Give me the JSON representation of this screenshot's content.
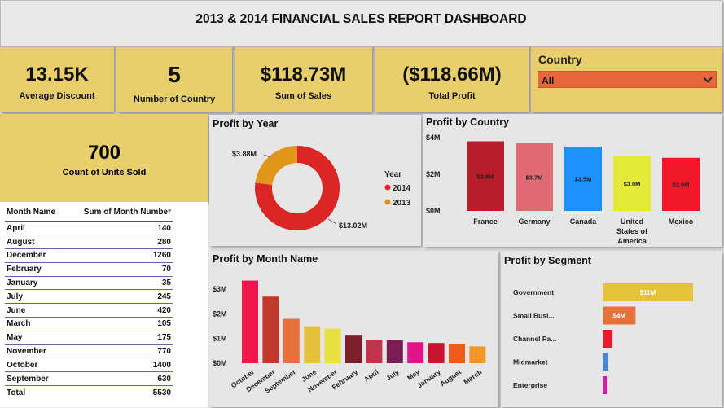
{
  "header": {
    "title": "2013 & 2014 FINANCIAL SALES REPORT DASHBOARD"
  },
  "kpis": [
    {
      "value": "13.15K",
      "label": "Average Discount"
    },
    {
      "value": "5",
      "label": "Number of Country"
    },
    {
      "value": "$118.73M",
      "label": "Sum of Sales"
    },
    {
      "value": "($118.66M)",
      "label": "Total Profit"
    }
  ],
  "slicer": {
    "title": "Country",
    "selected": "All"
  },
  "units": {
    "value": "700",
    "label": "Count of Units Sold"
  },
  "month_table": {
    "headers": [
      "Month Name",
      "Sum of Month Number"
    ],
    "rows": [
      {
        "m": "April",
        "v": "140"
      },
      {
        "m": "August",
        "v": "280"
      },
      {
        "m": "December",
        "v": "1260"
      },
      {
        "m": "February",
        "v": "70"
      },
      {
        "m": "January",
        "v": "35"
      },
      {
        "m": "July",
        "v": "245"
      },
      {
        "m": "June",
        "v": "420"
      },
      {
        "m": "March",
        "v": "105"
      },
      {
        "m": "May",
        "v": "175"
      },
      {
        "m": "November",
        "v": "770"
      },
      {
        "m": "October",
        "v": "1400"
      },
      {
        "m": "September",
        "v": "630"
      }
    ],
    "total": {
      "m": "Total",
      "v": "5530"
    }
  },
  "colors": {
    "gold": "#e8cf6b",
    "orange": "#e8673a"
  },
  "chart_data": [
    {
      "type": "pie",
      "title": "Profit by Year",
      "legend_title": "Year",
      "legend_position": "right",
      "slices": [
        {
          "name": "2014",
          "value": 13.02,
          "label": "$13.02M",
          "color": "#dc2626"
        },
        {
          "name": "2013",
          "value": 3.88,
          "label": "$3.88M",
          "color": "#e0951b"
        }
      ]
    },
    {
      "type": "bar",
      "title": "Profit by Country",
      "yticks": [
        "$0M",
        "$2M",
        "$4M"
      ],
      "ylim": [
        0,
        4
      ],
      "categories": [
        "France",
        "Germany",
        "Canada",
        "United States of America",
        "Mexico"
      ],
      "values": [
        3.8,
        3.7,
        3.5,
        3.0,
        2.9
      ],
      "labels": [
        "$3.8M",
        "$3.7M",
        "$3.5M",
        "$3.0M",
        "$2.9M"
      ],
      "colors": [
        "#b91c2a",
        "#e06a74",
        "#1e90ff",
        "#e5ea3a",
        "#f2182c"
      ]
    },
    {
      "type": "bar",
      "title": "Profit by Month Name",
      "yticks": [
        "$0M",
        "$1M",
        "$2M",
        "$3M"
      ],
      "ylim": [
        0,
        3.5
      ],
      "categories": [
        "October",
        "December",
        "September",
        "June",
        "November",
        "February",
        "April",
        "July",
        "May",
        "January",
        "August",
        "March"
      ],
      "values": [
        3.35,
        2.7,
        1.8,
        1.5,
        1.4,
        1.15,
        0.95,
        0.93,
        0.85,
        0.82,
        0.78,
        0.68
      ],
      "colors": [
        "#f0184a",
        "#c0392b",
        "#e8703a",
        "#e6c03a",
        "#e8e040",
        "#7a1f2b",
        "#c0334a",
        "#7b1d55",
        "#e0148a",
        "#c8142e",
        "#f05a1a",
        "#f5962a"
      ]
    },
    {
      "type": "bar",
      "orientation": "horizontal",
      "title": "Profit by Segment",
      "categories": [
        "Government",
        "Small Busi...",
        "Channel Pa...",
        "Midmarket",
        "Enterprise"
      ],
      "values": [
        11,
        4,
        1.2,
        0.6,
        0.5
      ],
      "labels": [
        "$11M",
        "$4M",
        "",
        "",
        ""
      ],
      "colors": [
        "#e4c23a",
        "#e8703a",
        "#f0182c",
        "#4a86d8",
        "#e018a8"
      ]
    }
  ]
}
